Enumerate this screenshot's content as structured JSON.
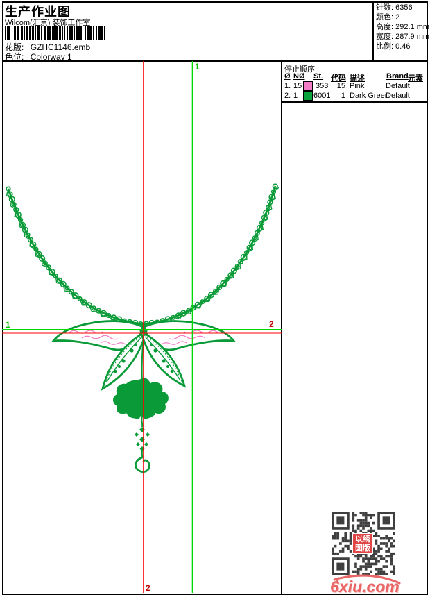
{
  "page": {
    "title": "生产作业图",
    "studio": "Wilcom(汇京) 装饰工作室",
    "pattern_label": "花版:",
    "pattern_value": "GZHC1146.emb",
    "colorway_label": "色位:",
    "colorway_value": "Colorway 1"
  },
  "stats": {
    "rows": [
      {
        "label": "针数:",
        "value": "6356"
      },
      {
        "label": "颜色:",
        "value": "2"
      },
      {
        "label": "高度:",
        "value": "292.1 mm"
      },
      {
        "label": "宽度:",
        "value": "287.9 mm"
      },
      {
        "label": "比例:",
        "value": "0.46"
      }
    ]
  },
  "stop_sequence": {
    "title": "停止顺序:",
    "columns": {
      "num": "Ø",
      "needle": "NØ",
      "st": "St.",
      "code": "代码",
      "desc": "描述",
      "brand": "Brand",
      "element": "元素"
    },
    "rows": [
      {
        "seq": "1.",
        "needle": "15",
        "color": "#f27cc6",
        "st": "353",
        "code": "15",
        "desc": "Pink",
        "brand": "Default",
        "element": ""
      },
      {
        "seq": "2.",
        "needle": "1",
        "color": "#0aa23c",
        "st": "6001",
        "code": "1",
        "desc": "Dark Green",
        "brand": "Default",
        "element": ""
      }
    ]
  },
  "markers": {
    "top": "1",
    "left": "1",
    "right": "2",
    "bottom": "2"
  },
  "watermark": {
    "stamp_line1": "以绣",
    "stamp_line2": "图版",
    "site": "6xiu.com"
  },
  "colors": {
    "design_green": "#0a9b38",
    "guide_green": "#00d800",
    "guide_red": "#ff0000",
    "marker_red": "#c00000",
    "fill_pink": "#f07ec4",
    "qr_dark": "#3f3f3f",
    "logo_red": "#e96666"
  }
}
